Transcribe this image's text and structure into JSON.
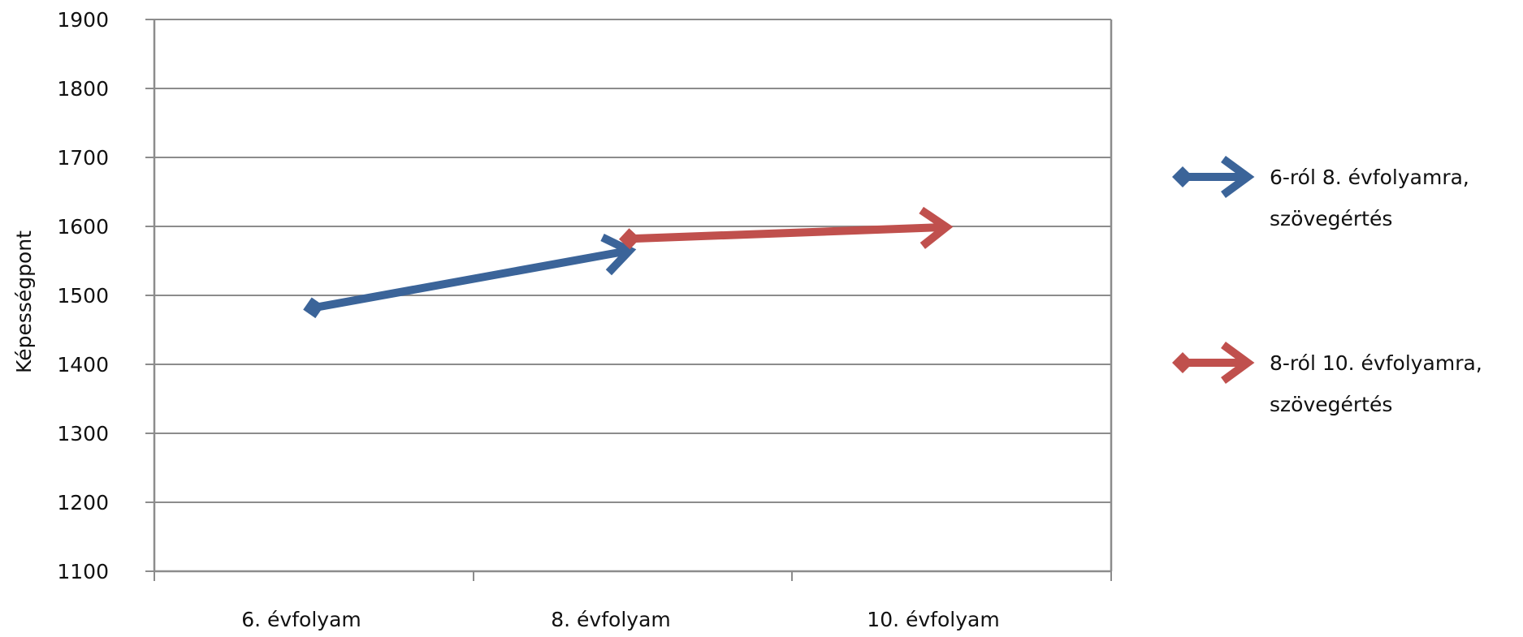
{
  "chart_data": {
    "type": "line",
    "title": "",
    "xlabel": "",
    "ylabel": "Képességpont",
    "ylim": [
      1100,
      1900
    ],
    "yticks": [
      1100,
      1200,
      1300,
      1400,
      1500,
      1600,
      1700,
      1800,
      1900
    ],
    "ytick_labels": [
      "1100",
      "1200",
      "1300",
      "1400",
      "1500",
      "1600",
      "1700",
      "1800",
      "1900"
    ],
    "categories": [
      "6. évfolyam",
      "8. évfolyam",
      "10. évfolyam"
    ],
    "grid": true,
    "legend_position": "right",
    "series": [
      {
        "name": "6-ról 8. évfolyamra, szövegértés",
        "name_lines": [
          "6-ról 8. évfolyamra,",
          "szövegértés"
        ],
        "color": "#3B6499",
        "points": [
          {
            "category": "6. évfolyam",
            "y": 1482
          },
          {
            "category": "8. évfolyam",
            "y": 1565
          }
        ]
      },
      {
        "name": "8-ról 10. évfolyamra, szövegértés",
        "name_lines": [
          "8-ról 10. évfolyamra,",
          "szövegértés"
        ],
        "color": "#C0504D",
        "points": [
          {
            "category": "8. évfolyam",
            "y": 1582
          },
          {
            "category": "10. évfolyam",
            "y": 1599
          }
        ]
      }
    ]
  }
}
